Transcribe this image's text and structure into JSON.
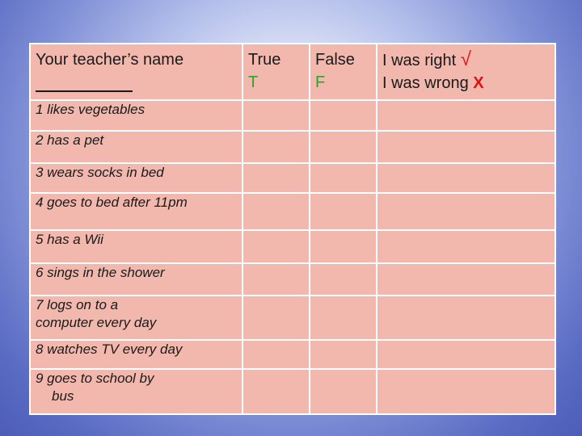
{
  "header": {
    "teacher_label": "Your teacher’s name",
    "true_label": "True",
    "true_letter": "T",
    "false_label": "False",
    "false_letter": "F",
    "right_label": "I was right",
    "right_mark": "√",
    "wrong_label": "I was wrong",
    "wrong_mark": "X"
  },
  "items": [
    {
      "line1": "1 likes vegetables",
      "line2": ""
    },
    {
      "line1": "2 has a pet",
      "line2": ""
    },
    {
      "line1": "3 wears socks in bed",
      "line2": ""
    },
    {
      "line1": "4 goes to bed after 11pm",
      "line2": ""
    },
    {
      "line1": "5 has a Wii",
      "line2": ""
    },
    {
      "line1": "6 sings in the shower",
      "line2": ""
    },
    {
      "line1": "7 logs on to a",
      "line2": "computer every day"
    },
    {
      "line1": "8  watches TV every day",
      "line2": ""
    },
    {
      "line1": "9 goes to school by",
      "line2": "bus"
    }
  ],
  "colors": {
    "table_fill": "#f2b8ae",
    "letter_green": "#2aa52a",
    "mark_red": "#e01010"
  }
}
